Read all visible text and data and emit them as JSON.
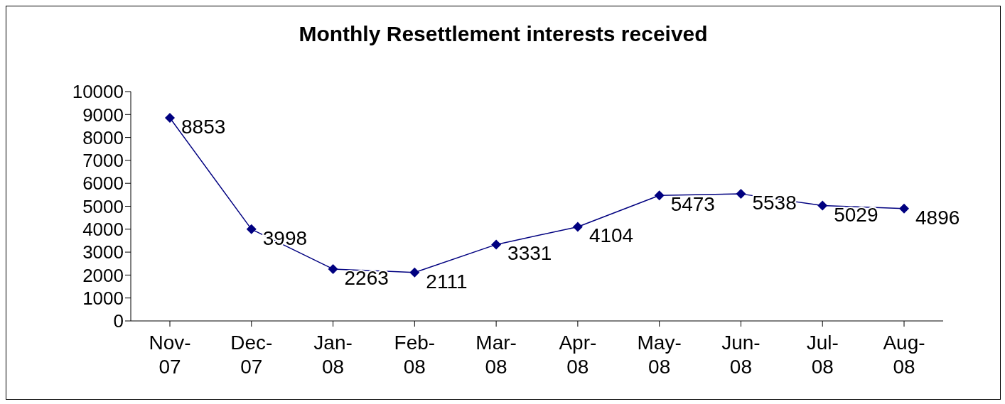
{
  "chart_data": {
    "type": "line",
    "title": "Monthly Resettlement interests received",
    "categories": [
      "Nov-07",
      "Dec-07",
      "Jan-08",
      "Feb-08",
      "Mar-08",
      "Apr-08",
      "May-08",
      "Jun-08",
      "Jul-08",
      "Aug-08"
    ],
    "series": [
      {
        "color": "#000080",
        "values": [
          8853,
          3998,
          2263,
          2111,
          3331,
          4104,
          5473,
          5538,
          5029,
          4896
        ]
      }
    ],
    "ylim": [
      0,
      10000
    ],
    "yticks": [
      0,
      1000,
      2000,
      3000,
      4000,
      5000,
      6000,
      7000,
      8000,
      9000,
      10000
    ],
    "grid": false,
    "legend": false,
    "marker": "diamond",
    "line_style": "solid",
    "data_labels": true
  }
}
